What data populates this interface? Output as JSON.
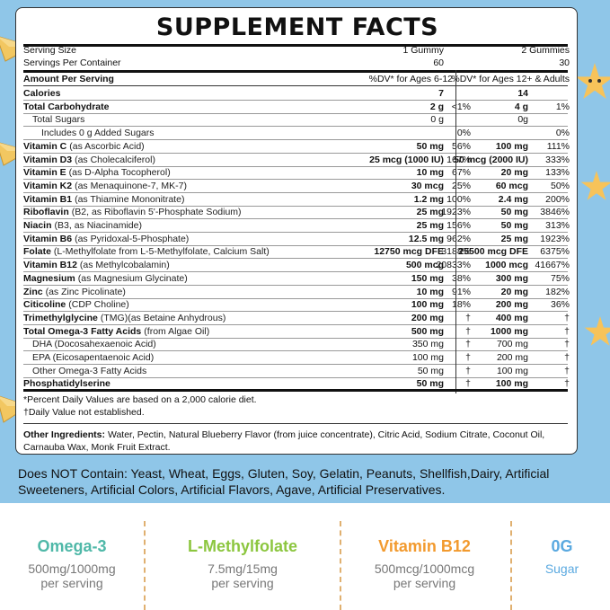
{
  "title": "SUPPLEMENT FACTS",
  "serving": {
    "size_label": "Serving Size",
    "size_a": "1 Gummy",
    "size_b": "2 Gummies",
    "per_container_label": "Servings Per Container",
    "per_container_a": "60",
    "per_container_b": "30"
  },
  "header": {
    "amount_label": "Amount Per Serving",
    "dv_a": "%DV* for Ages 6-12",
    "dv_b": "%DV* for Ages 12+ & Adults"
  },
  "rows": [
    {
      "name": "Calories",
      "detail": "",
      "a1": "7",
      "a2": "",
      "b1": "14",
      "b2": ""
    },
    {
      "name": "Total Carbohydrate",
      "detail": "",
      "a1": "2 g",
      "a2": "<1%",
      "b1": "4 g",
      "b2": "1%"
    },
    {
      "name": "",
      "detail": "Total Sugars",
      "a1": "0 g",
      "a2": "",
      "b1": "0g",
      "b2": ""
    },
    {
      "name": "",
      "detail": "Includes 0 g Added Sugars",
      "a1": "",
      "a2": "0%",
      "b1": "",
      "b2": "0%"
    },
    {
      "name": "Vitamin C",
      "detail": "(as Ascorbic Acid)",
      "a1": "50 mg",
      "a2": "56%",
      "b1": "100 mg",
      "b2": "111%"
    },
    {
      "name": "Vitamin D3",
      "detail": "(as Cholecalciferol)",
      "a1": "25 mcg (1000 IU)",
      "a2": "167%",
      "b1": "50 mcg (2000 IU)",
      "b2": "333%"
    },
    {
      "name": "Vitamin E",
      "detail": "(as D-Alpha Tocopherol)",
      "a1": "10 mg",
      "a2": "67%",
      "b1": "20 mg",
      "b2": "133%"
    },
    {
      "name": "Vitamin K2",
      "detail": "(as Menaquinone-7, MK-7)",
      "a1": "30 mcg",
      "a2": "25%",
      "b1": "60 mcg",
      "b2": "50%"
    },
    {
      "name": "Vitamin B1",
      "detail": "(as Thiamine Mononitrate)",
      "a1": "1.2 mg",
      "a2": "100%",
      "b1": "2.4 mg",
      "b2": "200%"
    },
    {
      "name": "Riboflavin",
      "detail": "(B2, as Riboflavin 5'-Phosphate Sodium)",
      "a1": "25 mg",
      "a2": "1923%",
      "b1": "50 mg",
      "b2": "3846%"
    },
    {
      "name": "Niacin",
      "detail": "(B3, as Niacinamide)",
      "a1": "25 mg",
      "a2": "156%",
      "b1": "50 mg",
      "b2": "313%"
    },
    {
      "name": "Vitamin B6",
      "detail": "(as Pyridoxal-5-Phosphate)",
      "a1": "12.5 mg",
      "a2": "962%",
      "b1": "25 mg",
      "b2": "1923%"
    },
    {
      "name": "Folate",
      "detail": "(L-Methylfolate from L-5-Methylfolate, Calcium Salt)",
      "a1": "12750 mcg DFE",
      "a2": "3188%",
      "b1": "25500 mcg DFE",
      "b2": "6375%"
    },
    {
      "name": "Vitamin B12",
      "detail": "(as Methylcobalamin)",
      "a1": "500 mcg",
      "a2": "20833%",
      "b1": "1000 mcg",
      "b2": "41667%"
    },
    {
      "name": "Magnesium",
      "detail": "(as Magnesium Glycinate)",
      "a1": "150 mg",
      "a2": "38%",
      "b1": "300 mg",
      "b2": "75%"
    },
    {
      "name": "Zinc",
      "detail": "(as Zinc Picolinate)",
      "a1": "10 mg",
      "a2": "91%",
      "b1": "20 mg",
      "b2": "182%"
    },
    {
      "name": "Citicoline",
      "detail": "(CDP Choline)",
      "a1": "100 mg",
      "a2": "18%",
      "b1": "200 mg",
      "b2": "36%"
    },
    {
      "name": "Trimethylglycine",
      "detail": "(TMG)(as Betaine Anhydrous)",
      "a1": "200 mg",
      "a2": "†",
      "b1": "400 mg",
      "b2": "†"
    },
    {
      "name": "Total Omega-3 Fatty Acids",
      "detail": "(from Algae Oil)",
      "a1": "500 mg",
      "a2": "†",
      "b1": "1000 mg",
      "b2": "†"
    },
    {
      "name": "",
      "detail": "DHA (Docosahexaenoic Acid)",
      "a1": "350 mg",
      "a2": "†",
      "b1": "700 mg",
      "b2": "†"
    },
    {
      "name": "",
      "detail": "EPA (Eicosapentaenoic Acid)",
      "a1": "100 mg",
      "a2": "†",
      "b1": "200 mg",
      "b2": "†"
    },
    {
      "name": "",
      "detail": "Other Omega-3 Fatty Acids",
      "a1": "50 mg",
      "a2": "†",
      "b1": "100 mg",
      "b2": "†"
    },
    {
      "name": "Phosphatidylserine",
      "detail": "",
      "a1": "50 mg",
      "a2": "†",
      "b1": "100 mg",
      "b2": "†"
    }
  ],
  "footnotes": [
    "*Percent Daily Values are based on a 2,000 calorie diet.",
    "†Daily Value not established."
  ],
  "other_ingredients_label": "Other Ingredients:",
  "other_ingredients": "Water, Pectin, Natural Blueberry Flavor (from juice concentrate), Citric Acid, Sodium Citrate, Coconut Oil, Carnauba Wax, Monk Fruit Extract.",
  "does_not_contain": "Does NOT Contain: Yeast, Wheat, Eggs, Gluten, Soy, Gelatin, Peanuts, Shellfish,Dairy, Artificial Sweeteners, Artificial Colors, Artificial Flavors, Agave, Artificial Preservatives.",
  "bottom": [
    {
      "name": "Omega-3",
      "amount": "500mg/1000mg",
      "per": "per serving",
      "color": "#4fb8a8"
    },
    {
      "name": "L-Methylfolate",
      "amount": "7.5mg/15mg",
      "per": "per serving",
      "color": "#8cc63f"
    },
    {
      "name": "Vitamin B12",
      "amount": "500mcg/1000mcg",
      "per": "per serving",
      "color": "#f29a2e"
    },
    {
      "name": "0G",
      "amount": "Sugar",
      "per": "",
      "color": "#5aa9e0"
    }
  ]
}
